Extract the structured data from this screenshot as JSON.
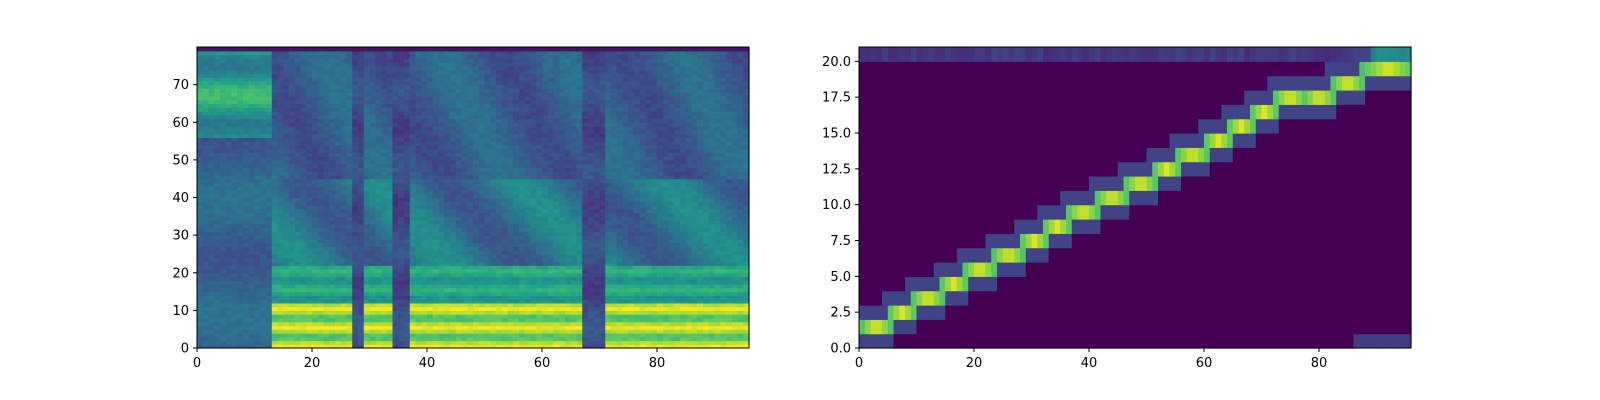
{
  "chart_data": [
    {
      "type": "heatmap",
      "title": "",
      "xlabel": "",
      "ylabel": "",
      "xlim": [
        0,
        96
      ],
      "ylim": [
        0,
        80
      ],
      "origin": "lower",
      "colormap": "viridis",
      "grid": false,
      "legend": "none",
      "x_ticks": [
        0,
        20,
        40,
        60,
        80
      ],
      "x_tick_labels": [
        "0",
        "20",
        "40",
        "60",
        "80"
      ],
      "y_ticks": [
        0,
        10,
        20,
        30,
        40,
        50,
        60,
        70
      ],
      "y_tick_labels": [
        "0",
        "10",
        "20",
        "30",
        "40",
        "50",
        "60",
        "70"
      ],
      "shape": {
        "cols": 96,
        "rows": 80
      },
      "description_note": "mel-spectrogram-like intensities; low bins bright (yellow) during voiced segments",
      "segments": [
        {
          "x": [
            0,
            13
          ],
          "profile": "upper-bright"
        },
        {
          "x": [
            13,
            27
          ],
          "profile": "voiced"
        },
        {
          "x": [
            27,
            29
          ],
          "profile": "gap"
        },
        {
          "x": [
            29,
            34
          ],
          "profile": "voiced"
        },
        {
          "x": [
            34,
            37
          ],
          "profile": "gap"
        },
        {
          "x": [
            37,
            67
          ],
          "profile": "voiced"
        },
        {
          "x": [
            67,
            71
          ],
          "profile": "gap"
        },
        {
          "x": [
            71,
            96
          ],
          "profile": "voiced"
        }
      ]
    },
    {
      "type": "heatmap",
      "title": "",
      "xlabel": "",
      "ylabel": "",
      "xlim": [
        0,
        96
      ],
      "ylim": [
        0,
        21
      ],
      "origin": "lower",
      "colormap": "viridis",
      "grid": false,
      "legend": "none",
      "x_ticks": [
        0,
        20,
        40,
        60,
        80
      ],
      "x_tick_labels": [
        "0",
        "20",
        "40",
        "60",
        "80"
      ],
      "y_ticks": [
        0,
        2.5,
        5,
        7.5,
        10,
        12.5,
        15,
        17.5,
        20
      ],
      "y_tick_labels": [
        "0.0",
        "2.5",
        "5.0",
        "7.5",
        "10.0",
        "12.5",
        "15.0",
        "17.5",
        "20.0"
      ],
      "shape": {
        "cols": 96,
        "rows": 21
      },
      "description_note": "alignment matrix; bright diagonal path from bottom-left to top-right",
      "alignment_path": [
        {
          "x": 0,
          "y": 1
        },
        {
          "x": 5,
          "y": 2
        },
        {
          "x": 9,
          "y": 3
        },
        {
          "x": 14,
          "y": 4
        },
        {
          "x": 18,
          "y": 5
        },
        {
          "x": 23,
          "y": 6
        },
        {
          "x": 28,
          "y": 7
        },
        {
          "x": 32,
          "y": 8
        },
        {
          "x": 36,
          "y": 9
        },
        {
          "x": 41,
          "y": 10
        },
        {
          "x": 46,
          "y": 11
        },
        {
          "x": 51,
          "y": 12
        },
        {
          "x": 55,
          "y": 13
        },
        {
          "x": 60,
          "y": 14
        },
        {
          "x": 64,
          "y": 15
        },
        {
          "x": 68,
          "y": 16
        },
        {
          "x": 72,
          "y": 17
        },
        {
          "x": 77,
          "y": 17
        },
        {
          "x": 82,
          "y": 18
        },
        {
          "x": 87,
          "y": 19
        }
      ]
    }
  ]
}
